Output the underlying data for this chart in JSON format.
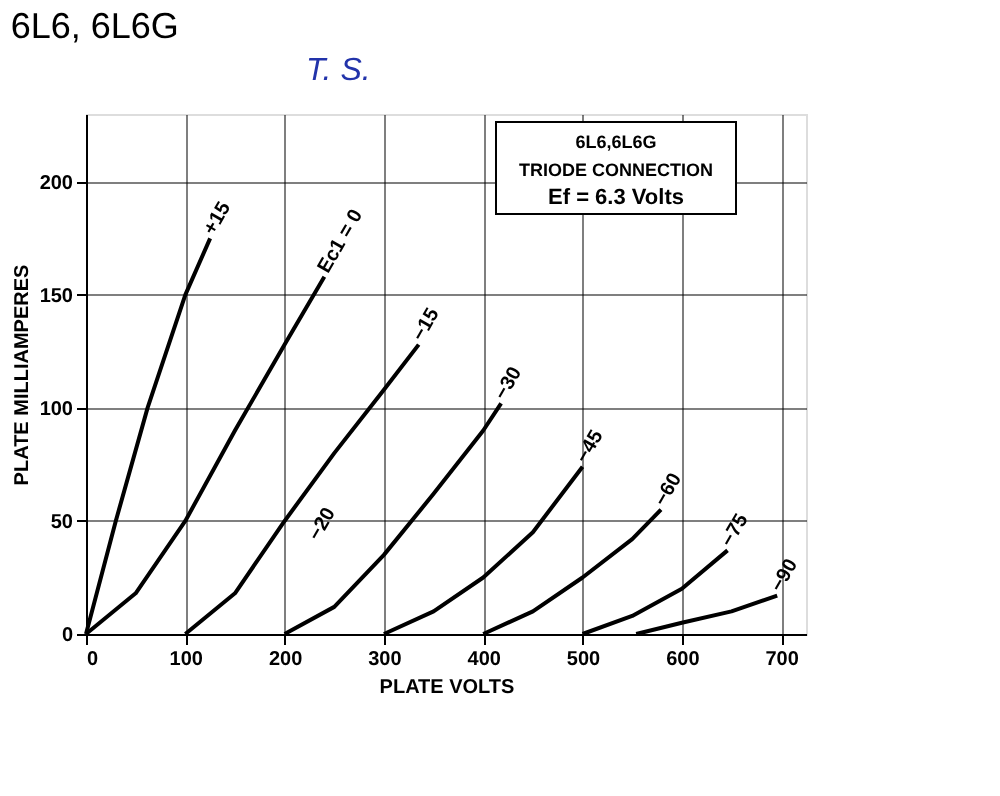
{
  "chart_data": {
    "type": "line",
    "title": "6L6, 6L6G",
    "xlabel": "PLATE VOLTS",
    "ylabel": "PLATE MILLIAMPERES",
    "annotations": [
      "T. S.",
      "6L6,6L6G",
      "TRIODE CONNECTION",
      "Ef = 6.3 Volts",
      "−20"
    ],
    "xlim": [
      0,
      725
    ],
    "ylim": [
      0,
      230
    ],
    "xticks": [
      0,
      100,
      200,
      300,
      400,
      500,
      600,
      700
    ],
    "yticks": [
      0,
      50,
      100,
      150,
      200
    ],
    "grid": true,
    "legend": false,
    "marker": "none",
    "line_style": "solid",
    "series": [
      {
        "name": "+15",
        "color": "#000000",
        "x": [
          0,
          30,
          62,
          100,
          125
        ],
        "values": [
          0,
          50,
          100,
          150,
          175
        ]
      },
      {
        "name": "Ec1 = 0",
        "color": "#000000",
        "x": [
          0,
          50,
          100,
          150,
          200,
          240
        ],
        "values": [
          0,
          18,
          50,
          90,
          128,
          158
        ]
      },
      {
        "name": "−15",
        "color": "#000000",
        "x": [
          100,
          150,
          200,
          250,
          300,
          335
        ],
        "values": [
          0,
          18,
          50,
          80,
          108,
          128
        ]
      },
      {
        "name": "−30",
        "color": "#000000",
        "x": [
          200,
          250,
          300,
          350,
          400,
          418
        ],
        "values": [
          0,
          12,
          35,
          62,
          90,
          102
        ]
      },
      {
        "name": "−45",
        "color": "#000000",
        "x": [
          300,
          350,
          400,
          450,
          500
        ],
        "values": [
          0,
          10,
          25,
          45,
          74
        ]
      },
      {
        "name": "−60",
        "color": "#000000",
        "x": [
          400,
          450,
          500,
          550,
          579
        ],
        "values": [
          0,
          10,
          25,
          42,
          55
        ]
      },
      {
        "name": "−75",
        "color": "#000000",
        "x": [
          500,
          550,
          600,
          646
        ],
        "values": [
          0,
          8,
          20,
          37
        ]
      },
      {
        "name": "−90",
        "color": "#000000",
        "x": [
          554,
          600,
          650,
          696
        ],
        "values": [
          0,
          5,
          10,
          17
        ]
      }
    ]
  }
}
